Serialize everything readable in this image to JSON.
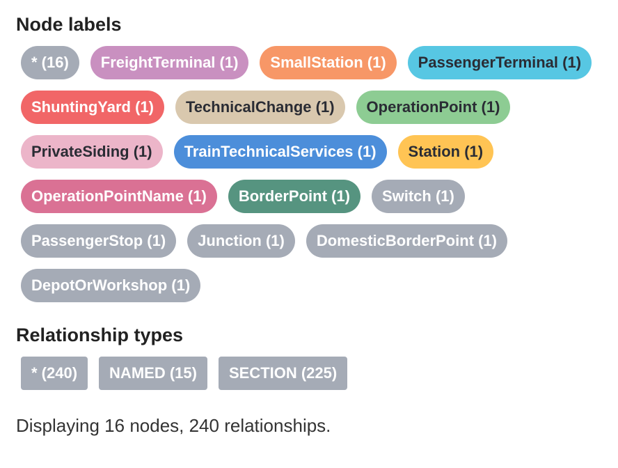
{
  "node_labels": {
    "title": "Node labels",
    "items": [
      {
        "label": "* (16)",
        "bg": "#a5abb6",
        "fg": "#ffffff"
      },
      {
        "label": "FreightTerminal (1)",
        "bg": "#c990c0",
        "fg": "#ffffff"
      },
      {
        "label": "SmallStation (1)",
        "bg": "#f79767",
        "fg": "#ffffff"
      },
      {
        "label": "PassengerTerminal (1)",
        "bg": "#57c7e3",
        "fg": "#2a2c34"
      },
      {
        "label": "ShuntingYard (1)",
        "bg": "#f16667",
        "fg": "#ffffff"
      },
      {
        "label": "TechnicalChange (1)",
        "bg": "#d9c8ae",
        "fg": "#2a2c34"
      },
      {
        "label": "OperationPoint (1)",
        "bg": "#8dcc93",
        "fg": "#2a2c34"
      },
      {
        "label": "PrivateSiding (1)",
        "bg": "#ecb5c9",
        "fg": "#2a2c34"
      },
      {
        "label": "TrainTechnicalServices (1)",
        "bg": "#4c8eda",
        "fg": "#ffffff"
      },
      {
        "label": "Station (1)",
        "bg": "#ffc454",
        "fg": "#2a2c34"
      },
      {
        "label": "OperationPointName (1)",
        "bg": "#da7194",
        "fg": "#ffffff"
      },
      {
        "label": "BorderPoint (1)",
        "bg": "#569480",
        "fg": "#ffffff"
      },
      {
        "label": "Switch (1)",
        "bg": "#a5abb6",
        "fg": "#ffffff"
      },
      {
        "label": "PassengerStop (1)",
        "bg": "#a5abb6",
        "fg": "#ffffff"
      },
      {
        "label": "Junction (1)",
        "bg": "#a5abb6",
        "fg": "#ffffff"
      },
      {
        "label": "DomesticBorderPoint (1)",
        "bg": "#a5abb6",
        "fg": "#ffffff"
      },
      {
        "label": "DepotOrWorkshop (1)",
        "bg": "#a5abb6",
        "fg": "#ffffff"
      }
    ]
  },
  "relationship_types": {
    "title": "Relationship types",
    "items": [
      {
        "label": "* (240)",
        "bg": "#a5abb6",
        "fg": "#ffffff"
      },
      {
        "label": "NAMED (15)",
        "bg": "#a5abb6",
        "fg": "#ffffff"
      },
      {
        "label": "SECTION (225)",
        "bg": "#a5abb6",
        "fg": "#ffffff"
      }
    ]
  },
  "status": "Displaying 16 nodes, 240 relationships."
}
